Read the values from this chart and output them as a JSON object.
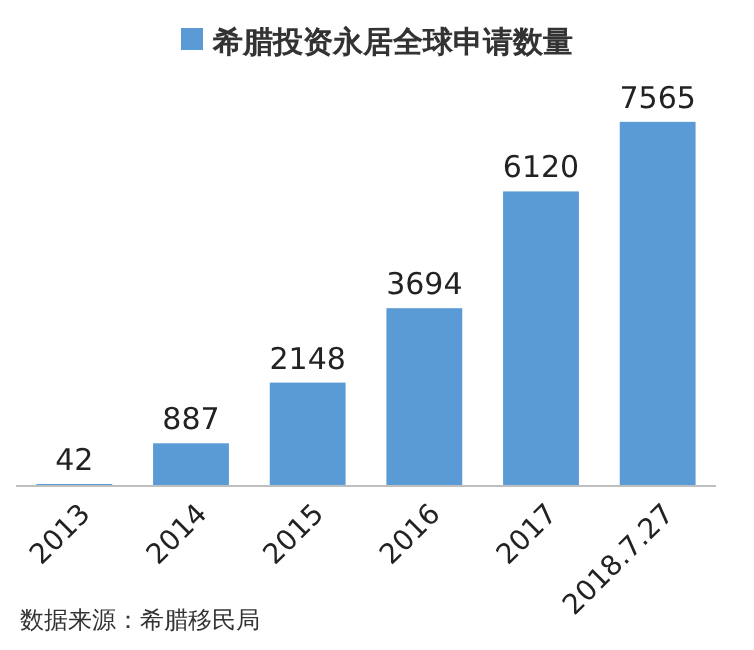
{
  "chart_data": {
    "type": "bar",
    "categories": [
      "2013",
      "2014",
      "2015",
      "2016",
      "2017",
      "2018.7.27"
    ],
    "series": [
      {
        "name": "希腊投资永居全球申请数量",
        "color": "#5b9bd5",
        "values": [
          42,
          887,
          2148,
          3694,
          6120,
          7565
        ]
      }
    ],
    "tick_labels": "x",
    "data_labels": true,
    "legend": "top",
    "annotations": [
      "数据来源：希腊移民局"
    ]
  }
}
